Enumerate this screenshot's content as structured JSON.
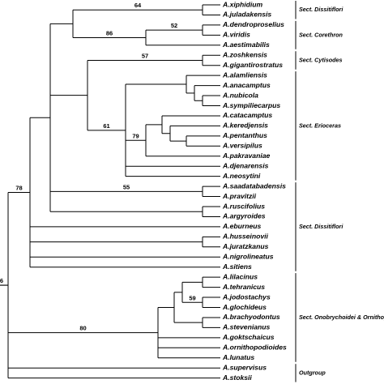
{
  "leaves": [
    "A.xiphidium",
    "A.juladakensis",
    "A.dendroproselius",
    "A.viridis",
    "A.aestimabilis",
    "A.zoshkensis",
    "A.gigantirostratus",
    "A.alamliensis",
    "A.anacamptus",
    "A.nubicola",
    "A.sympiliecarpus",
    "A.catacamptus",
    "A.keredjensis",
    "A.pentanthus",
    "A.versipilus",
    "A.pakravaniae",
    "A.djenarensis",
    "A.neosytini",
    "A.saadatabadensis",
    "A.pravitzii",
    "A.ruscifolius",
    "A.argyroides",
    "A.eburneus",
    "A.husseinovii",
    "A.juratzkanus",
    "A.nigrolineatus",
    "A.sitiens",
    "A.lilacinus",
    "A.tehranicus",
    "A.jodostachys",
    "A.glochideus",
    "A.brachyodontus",
    "A.stevenianus",
    "A.goktschaicus",
    "A.ornithopodioides",
    "A.lunatus",
    "A.supervisus",
    "A.stoksii"
  ],
  "bootstrap": [
    64,
    86,
    52,
    57,
    61,
    79,
    55,
    78,
    59,
    80,
    6
  ],
  "sections": [
    "Sect. Dissitiflori",
    "Sect. Corethron",
    "Sect. Cytisodes",
    "Sect. Erioceras",
    "Sect. Dissitiflori",
    "Sect. Onobrychoidei & Ornithopodioides",
    "Outgroup"
  ]
}
